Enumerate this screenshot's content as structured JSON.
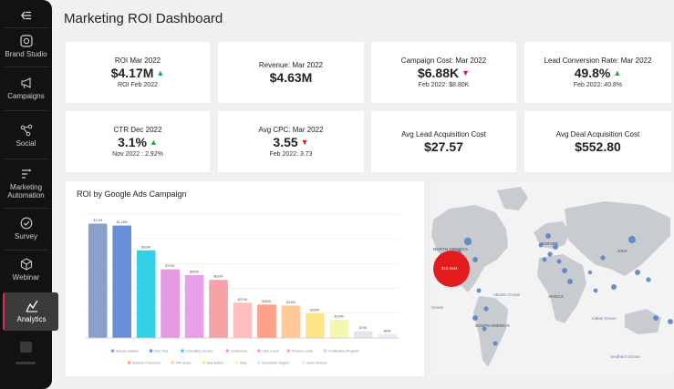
{
  "sidebar": {
    "items": [
      {
        "label": "Brand Studio",
        "icon": "brand-studio-icon"
      },
      {
        "label": "Campaigns",
        "icon": "campaigns-icon"
      },
      {
        "label": "Social",
        "icon": "social-icon"
      },
      {
        "label": "Marketing Automation",
        "icon": "automation-icon"
      },
      {
        "label": "Survey",
        "icon": "survey-icon"
      },
      {
        "label": "Webinar",
        "icon": "webinar-icon"
      },
      {
        "label": "Analytics",
        "icon": "analytics-icon",
        "active": true
      }
    ],
    "accent_color": "#d6304e"
  },
  "header": {
    "title": "Marketing ROI Dashboard"
  },
  "kpis": [
    {
      "label": "ROI Mar 2022",
      "value": "$4.17M",
      "trend": "up",
      "compare": "ROI Feb 2022"
    },
    {
      "label": "Revenue: Mar 2022",
      "value": "$4.63M",
      "trend": "",
      "compare": ""
    },
    {
      "label": "Campaign Cost: Mar 2022",
      "value": "$6.88K",
      "trend": "down",
      "compare": "Feb 2022: $8.80K"
    },
    {
      "label": "Lead Conversion Rate: Mar 2022",
      "value": "49.8%",
      "trend": "up",
      "compare": "Feb 2022: 40.8%"
    },
    {
      "label": "CTR Dec 2022",
      "value": "3.1%",
      "trend": "up",
      "compare": "Nov 2022 : 2.92%"
    },
    {
      "label": "Avg CPC: Mar 2022",
      "value": "3.55",
      "trend": "down",
      "compare": "Feb 2022: 3.73"
    },
    {
      "label": "Avg Lead Acquisition Cost",
      "value": "$27.57",
      "trend": "",
      "compare": ""
    },
    {
      "label": "Avg Deal Acquisition Cost",
      "value": "$552.80",
      "trend": "",
      "compare": ""
    }
  ],
  "trend_colors": {
    "up": "#2aa24b",
    "down": "#e0202e"
  },
  "chart_data": {
    "type": "bar",
    "title": "ROI by Google Ads Campaign",
    "categories": [
      "Sample Gallery",
      "Free Trial",
      "Consulting Service",
      "Conference",
      "CEO Lunch",
      "Finance Lunch",
      "Certification Program",
      "Webinar Promotion",
      "VIP Series",
      "Bay Builder",
      "Blog",
      "Competitor Targets",
      "Sonic Vertical"
    ],
    "values": [
      1.2,
      1.18,
      0.92,
      0.72,
      0.66,
      0.61,
      0.37,
      0.35,
      0.34,
      0.26,
      0.19,
      0.07,
      0.04
    ],
    "data_labels": [
      "$1.2M",
      "$1.18M",
      "$920K",
      "$720K",
      "$660K",
      "$610K",
      "$370K",
      "$350K",
      "$340K",
      "$260K",
      "$190K",
      "$70K",
      "$40K"
    ],
    "colors": [
      "#8aa0c8",
      "#6a8ed8",
      "#35cfe8",
      "#e59ae0",
      "#e8a0e8",
      "#f5a3a8",
      "#ffbfbf",
      "#ff9f8a",
      "#ffc99a",
      "#ffe58a",
      "#f3f7b0",
      "#dfe6f0",
      "#e8ecf4"
    ],
    "ylim": [
      0,
      1.3
    ],
    "grid": true,
    "legend": "bottom"
  },
  "map": {
    "continents": [
      "NORTH AMERICA",
      "EUROPE",
      "ASIA",
      "AFRICA",
      "SOUTH AMERICA"
    ],
    "oceans": [
      "Atlantic Ocean",
      "Ocean",
      "Indian Ocean",
      "Southern Ocean"
    ],
    "highlight_label": "$16.56M",
    "highlight_color": "#e21b1b",
    "marker_color": "#5b86c8"
  }
}
